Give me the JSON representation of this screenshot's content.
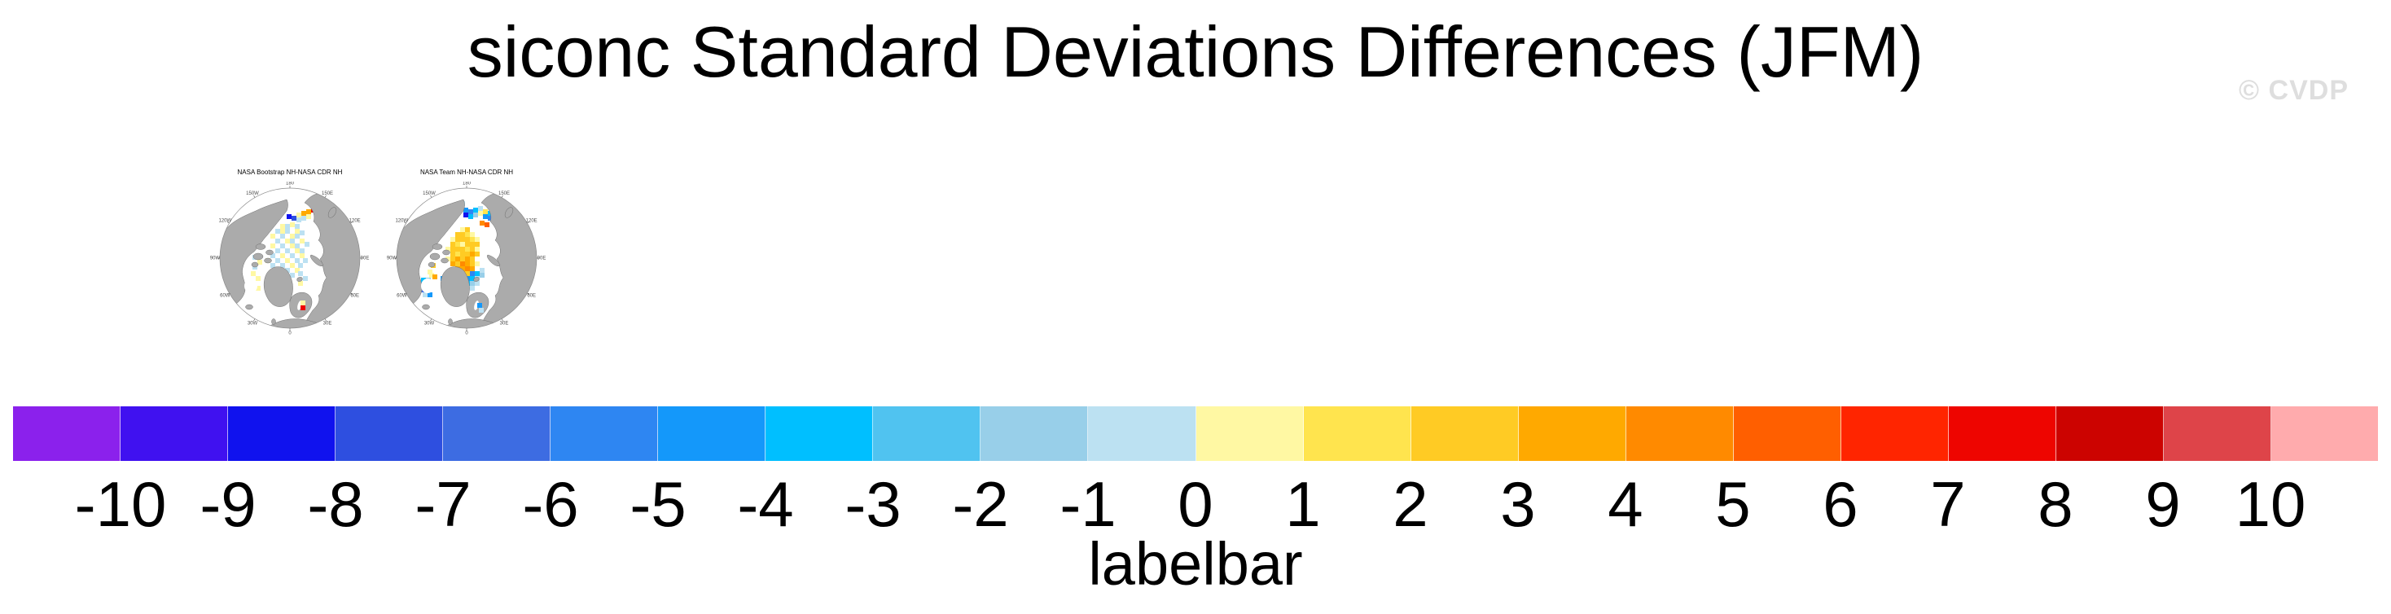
{
  "title": "siconc Standard Deviations Differences (JFM)",
  "watermark": "© CVDP",
  "panels": [
    {
      "title": "NASA Bootstrap NH-NASA CDR NH",
      "lon_labels": [
        {
          "t": "180",
          "a": 0
        },
        {
          "t": "150E",
          "a": 30
        },
        {
          "t": "120E",
          "a": 60
        },
        {
          "t": "90E",
          "a": 90
        },
        {
          "t": "60E",
          "a": 120
        },
        {
          "t": "30E",
          "a": 150
        },
        {
          "t": "0",
          "a": 180
        },
        {
          "t": "30W",
          "a": 210
        },
        {
          "t": "60W",
          "a": 240
        },
        {
          "t": "90W",
          "a": 270
        },
        {
          "t": "120W",
          "a": 300
        },
        {
          "t": "150W",
          "a": 330
        }
      ],
      "cells": [
        [
          88,
          52,
          "y"
        ],
        [
          94,
          52,
          "b"
        ],
        [
          100,
          50,
          "y"
        ],
        [
          106,
          52,
          "b"
        ],
        [
          82,
          58,
          "b"
        ],
        [
          88,
          58,
          "y"
        ],
        [
          94,
          58,
          "b"
        ],
        [
          106,
          58,
          "y"
        ],
        [
          112,
          60,
          "b"
        ],
        [
          76,
          64,
          "y"
        ],
        [
          88,
          64,
          "b"
        ],
        [
          100,
          64,
          "y"
        ],
        [
          106,
          64,
          "b"
        ],
        [
          82,
          70,
          "b"
        ],
        [
          94,
          70,
          "y"
        ],
        [
          100,
          70,
          "b"
        ],
        [
          112,
          70,
          "y"
        ],
        [
          76,
          76,
          "y"
        ],
        [
          88,
          76,
          "b"
        ],
        [
          100,
          76,
          "y"
        ],
        [
          106,
          76,
          "b"
        ],
        [
          118,
          74,
          "b"
        ],
        [
          82,
          82,
          "b"
        ],
        [
          94,
          82,
          "b"
        ],
        [
          106,
          82,
          "y"
        ],
        [
          112,
          82,
          "b"
        ],
        [
          76,
          88,
          "b"
        ],
        [
          88,
          88,
          "y"
        ],
        [
          100,
          88,
          "b"
        ],
        [
          112,
          88,
          "y"
        ],
        [
          70,
          94,
          "y"
        ],
        [
          82,
          94,
          "b"
        ],
        [
          94,
          94,
          "y"
        ],
        [
          106,
          94,
          "b"
        ],
        [
          116,
          94,
          "b"
        ],
        [
          76,
          100,
          "b"
        ],
        [
          88,
          100,
          "b"
        ],
        [
          100,
          100,
          "y"
        ],
        [
          110,
          100,
          "b"
        ],
        [
          82,
          106,
          "y"
        ],
        [
          94,
          106,
          "b"
        ],
        [
          106,
          106,
          "y"
        ],
        [
          88,
          112,
          "b"
        ],
        [
          100,
          112,
          "b"
        ],
        [
          96,
          40,
          "N"
        ],
        [
          102,
          42,
          "n"
        ],
        [
          108,
          38,
          "y"
        ],
        [
          114,
          36,
          "o"
        ],
        [
          120,
          34,
          "o"
        ],
        [
          126,
          32,
          "R"
        ],
        [
          108,
          44,
          "b"
        ],
        [
          114,
          42,
          "b"
        ],
        [
          120,
          40,
          "y"
        ],
        [
          52,
          110,
          "y"
        ],
        [
          58,
          116,
          "y"
        ],
        [
          52,
          122,
          "b"
        ],
        [
          58,
          128,
          "y"
        ],
        [
          54,
          90,
          "b"
        ],
        [
          60,
          96,
          "y"
        ],
        [
          54,
          102,
          "b"
        ],
        [
          82,
          32,
          "y"
        ],
        [
          88,
          30,
          "b"
        ],
        [
          110,
          110,
          "b"
        ],
        [
          116,
          116,
          "b"
        ],
        [
          110,
          122,
          "y"
        ]
      ],
      "cells_above": [
        [
          113,
          146,
          "y"
        ],
        [
          113,
          152,
          "R"
        ]
      ]
    },
    {
      "title": "NASA Team NH-NASA CDR NH",
      "lon_labels": [
        {
          "t": "180",
          "a": 0
        },
        {
          "t": "150E",
          "a": 30
        },
        {
          "t": "120E",
          "a": 60
        },
        {
          "t": "90E",
          "a": 90
        },
        {
          "t": "60E",
          "a": 120
        },
        {
          "t": "30E",
          "a": 150
        },
        {
          "t": "0",
          "a": 180
        },
        {
          "t": "30W",
          "a": 210
        },
        {
          "t": "60W",
          "a": 240
        },
        {
          "t": "90W",
          "a": 270
        },
        {
          "t": "120W",
          "a": 300
        },
        {
          "t": "150W",
          "a": 330
        }
      ],
      "cells": [
        [
          78,
          34,
          "c"
        ],
        [
          84,
          32,
          "d"
        ],
        [
          90,
          30,
          "b"
        ],
        [
          96,
          32,
          "D"
        ],
        [
          102,
          34,
          "e"
        ],
        [
          108,
          32,
          "d"
        ],
        [
          114,
          30,
          "b"
        ],
        [
          96,
          38,
          "N"
        ],
        [
          102,
          40,
          "d"
        ],
        [
          108,
          38,
          "c"
        ],
        [
          114,
          36,
          "y"
        ],
        [
          120,
          34,
          "g"
        ],
        [
          126,
          36,
          "d"
        ],
        [
          120,
          40,
          "D"
        ],
        [
          126,
          42,
          "e"
        ],
        [
          116,
          48,
          "O"
        ],
        [
          122,
          50,
          "v"
        ],
        [
          92,
          56,
          "y"
        ],
        [
          98,
          56,
          "G"
        ],
        [
          86,
          62,
          "G"
        ],
        [
          92,
          62,
          "G"
        ],
        [
          98,
          62,
          "g"
        ],
        [
          104,
          62,
          "y"
        ],
        [
          80,
          68,
          "y"
        ],
        [
          86,
          68,
          "G"
        ],
        [
          92,
          68,
          "G"
        ],
        [
          98,
          68,
          "G"
        ],
        [
          104,
          68,
          "g"
        ],
        [
          110,
          68,
          "y"
        ],
        [
          80,
          74,
          "G"
        ],
        [
          86,
          74,
          "g"
        ],
        [
          92,
          74,
          "y"
        ],
        [
          98,
          74,
          "G"
        ],
        [
          104,
          74,
          "G"
        ],
        [
          110,
          74,
          "G"
        ],
        [
          74,
          80,
          "y"
        ],
        [
          80,
          80,
          "G"
        ],
        [
          86,
          80,
          "G"
        ],
        [
          92,
          80,
          "G"
        ],
        [
          98,
          80,
          "g"
        ],
        [
          104,
          80,
          "G"
        ],
        [
          110,
          80,
          "y"
        ],
        [
          80,
          86,
          "G"
        ],
        [
          86,
          86,
          "g"
        ],
        [
          92,
          86,
          "G"
        ],
        [
          98,
          86,
          "G"
        ],
        [
          104,
          86,
          "o"
        ],
        [
          110,
          86,
          "G"
        ],
        [
          74,
          92,
          "y"
        ],
        [
          80,
          92,
          "G"
        ],
        [
          86,
          92,
          "o"
        ],
        [
          92,
          92,
          "G"
        ],
        [
          98,
          92,
          "o"
        ],
        [
          104,
          92,
          "G"
        ],
        [
          80,
          98,
          "o"
        ],
        [
          86,
          98,
          "G"
        ],
        [
          92,
          98,
          "O"
        ],
        [
          98,
          98,
          "o"
        ],
        [
          104,
          98,
          "G"
        ],
        [
          110,
          98,
          "y"
        ],
        [
          86,
          104,
          "o"
        ],
        [
          92,
          104,
          "o"
        ],
        [
          98,
          104,
          "O"
        ],
        [
          104,
          104,
          "o"
        ],
        [
          92,
          110,
          "o"
        ],
        [
          98,
          110,
          "G"
        ],
        [
          74,
          110,
          "c"
        ],
        [
          80,
          110,
          "d"
        ],
        [
          104,
          110,
          "e"
        ],
        [
          110,
          110,
          "d"
        ],
        [
          116,
          106,
          "b"
        ],
        [
          68,
          116,
          "D"
        ],
        [
          74,
          116,
          "d"
        ],
        [
          80,
          116,
          "b"
        ],
        [
          86,
          116,
          "c"
        ],
        [
          92,
          116,
          "d"
        ],
        [
          98,
          116,
          "D"
        ],
        [
          104,
          116,
          "d"
        ],
        [
          110,
          116,
          "b"
        ],
        [
          116,
          112,
          "c"
        ],
        [
          74,
          122,
          "b"
        ],
        [
          80,
          122,
          "D"
        ],
        [
          86,
          122,
          "b"
        ],
        [
          98,
          122,
          "d"
        ],
        [
          104,
          122,
          "c"
        ],
        [
          110,
          122,
          "b"
        ],
        [
          80,
          128,
          "d"
        ],
        [
          104,
          128,
          "b"
        ],
        [
          44,
          118,
          "d"
        ],
        [
          50,
          118,
          "c"
        ],
        [
          40,
          124,
          "N"
        ],
        [
          46,
          124,
          "D"
        ],
        [
          52,
          124,
          "b"
        ],
        [
          42,
          130,
          "E"
        ],
        [
          48,
          130,
          "d"
        ],
        [
          46,
          136,
          "b"
        ],
        [
          52,
          136,
          "D"
        ],
        [
          54,
          112,
          "y"
        ],
        [
          56,
          100,
          "G"
        ],
        [
          52,
          108,
          "y"
        ],
        [
          58,
          114,
          "o"
        ],
        [
          86,
          26,
          "c"
        ],
        [
          92,
          24,
          "b"
        ]
      ],
      "cells_above": [
        [
          113,
          149,
          "D"
        ],
        [
          115,
          155,
          "b"
        ]
      ]
    }
  ],
  "palette": {
    "y": "#FFF8A3",
    "g": "#FFE44E",
    "G": "#FFCB24",
    "o": "#FFA900",
    "O": "#FF8A00",
    "v": "#FF5F00",
    "r": "#FF2500",
    "R": "#EE0500",
    "b": "#BCE1F2",
    "c": "#98CFE9",
    "C": "#50C3F0",
    "d": "#00BFFF",
    "D": "#1498FA",
    "e": "#2E86F2",
    "E": "#3D6CE2",
    "n": "#2E4FE0",
    "N": "#1012EE"
  },
  "map_style": {
    "land": "#ABABAB",
    "coast": "#707070",
    "circle": "#8A8A8A",
    "label": "#4A4A4A"
  },
  "colorbar": {
    "title": "labelbar",
    "tick_labels": [
      "-10",
      "-9",
      "-8",
      "-7",
      "-6",
      "-5",
      "-4",
      "-3",
      "-2",
      "-1",
      "0",
      "1",
      "2",
      "3",
      "4",
      "5",
      "6",
      "7",
      "8",
      "9",
      "10"
    ],
    "colors": [
      "#8B21EC",
      "#4011F0",
      "#1012EE",
      "#2E4FE0",
      "#3D6CE2",
      "#2E86F2",
      "#1498FA",
      "#00BFFF",
      "#50C3F0",
      "#98CFE9",
      "#BCE1F2",
      "#FFF8A3",
      "#FFE44E",
      "#FFCB24",
      "#FFA900",
      "#FF8A00",
      "#FF5F00",
      "#FF2500",
      "#EE0500",
      "#CC0300",
      "#DE4449",
      "#FFABAD"
    ]
  },
  "chart_data": {
    "type": "heatmap",
    "title": "siconc Standard Deviations Differences (JFM)",
    "variable": "siconc",
    "season": "JFM",
    "panels": [
      {
        "title": "NASA Bootstrap NH-NASA CDR NH",
        "projection": "north-polar-stereographic",
        "summary": "Scattered small differences (mostly -1 to +1, pale blue / pale yellow checkering) across the central Arctic, Hudson Bay and Baffin Bay; isolated +3 to +8 (orange/red) cells along the Chukchi / East Siberian coast; a -8 to -9 (dark blue) cell near the Siberian coast; one +7 to +8 (red) cell in the Gulf of Bothnia."
      },
      {
        "title": "NASA Team NH-NASA CDR NH",
        "projection": "north-polar-stereographic",
        "summary": "Broad +1 to +5 (yellow / gold / orange) region over the central Arctic; -1 to -6 (blue) band along the Atlantic sector, Siberian shelf seas, Bering Sea and Baffin Bay / Labrador Sea (down to -8/-9 dark blue cells); isolated +4 to +6 (deep orange) cell near the Laptev / 120E coast."
      }
    ],
    "colorbar": {
      "label": "labelbar",
      "tick_values": [
        -10,
        -9,
        -8,
        -7,
        -6,
        -5,
        -4,
        -3,
        -2,
        -1,
        0,
        1,
        2,
        3,
        4,
        5,
        6,
        7,
        8,
        9,
        10
      ],
      "n_boxes": 22,
      "box_colors": [
        "#8B21EC",
        "#4011F0",
        "#1012EE",
        "#2E4FE0",
        "#3D6CE2",
        "#2E86F2",
        "#1498FA",
        "#00BFFF",
        "#50C3F0",
        "#98CFE9",
        "#BCE1F2",
        "#FFF8A3",
        "#FFE44E",
        "#FFCB24",
        "#FFA900",
        "#FF8A00",
        "#FF5F00",
        "#FF2500",
        "#EE0500",
        "#CC0300",
        "#DE4449",
        "#FFABAD"
      ],
      "orientation": "horizontal"
    },
    "longitude_ring_labels": [
      "180",
      "150E",
      "120E",
      "90E",
      "60E",
      "30E",
      "0",
      "30W",
      "60W",
      "90W",
      "120W",
      "150W"
    ],
    "grid": false,
    "legend_position": "bottom"
  }
}
